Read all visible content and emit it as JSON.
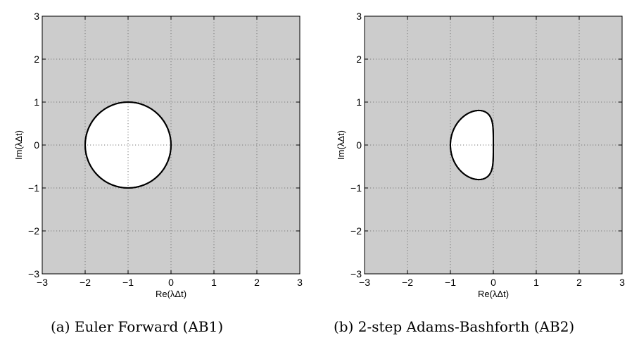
{
  "chart_data": [
    {
      "type": "area",
      "title": "",
      "xlabel": "Re(λΔt)",
      "ylabel": "Im(λΔt)",
      "xlim": [
        -3,
        3
      ],
      "ylim": [
        -3,
        3
      ],
      "xticks": [
        -3,
        -2,
        -1,
        0,
        1,
        2,
        3
      ],
      "yticks": [
        -3,
        -2,
        -1,
        0,
        1,
        2,
        3
      ],
      "xtick_labels": [
        "−3",
        "−2",
        "−1",
        "0",
        "1",
        "2",
        "3"
      ],
      "ytick_labels": [
        "−3",
        "−2",
        "−1",
        "0",
        "1",
        "2",
        "3"
      ],
      "grid": true,
      "background_color": "#cccccc",
      "region_color": "#ffffff",
      "boundary": {
        "shape": "circle",
        "center": [
          -1,
          0
        ],
        "radius": 1
      }
    },
    {
      "type": "area",
      "title": "",
      "xlabel": "Re(λΔt)",
      "ylabel": "Im(λΔt)",
      "xlim": [
        -3,
        3
      ],
      "ylim": [
        -3,
        3
      ],
      "xticks": [
        -3,
        -2,
        -1,
        0,
        1,
        2,
        3
      ],
      "yticks": [
        -3,
        -2,
        -1,
        0,
        1,
        2,
        3
      ],
      "xtick_labels": [
        "−3",
        "−2",
        "−1",
        "0",
        "1",
        "2",
        "3"
      ],
      "ytick_labels": [
        "−3",
        "−2",
        "−1",
        "0",
        "1",
        "2",
        "3"
      ],
      "grid": true,
      "background_color": "#cccccc",
      "region_color": "#ffffff",
      "boundary": {
        "shape": "ab2-stability-locus",
        "x_min": -1,
        "x_max": 0,
        "y_max": 0.8
      }
    }
  ],
  "captions": {
    "a": "(a) Euler Forward (AB1)",
    "b": "(b) 2-step Adams-Bashforth (AB2)"
  }
}
